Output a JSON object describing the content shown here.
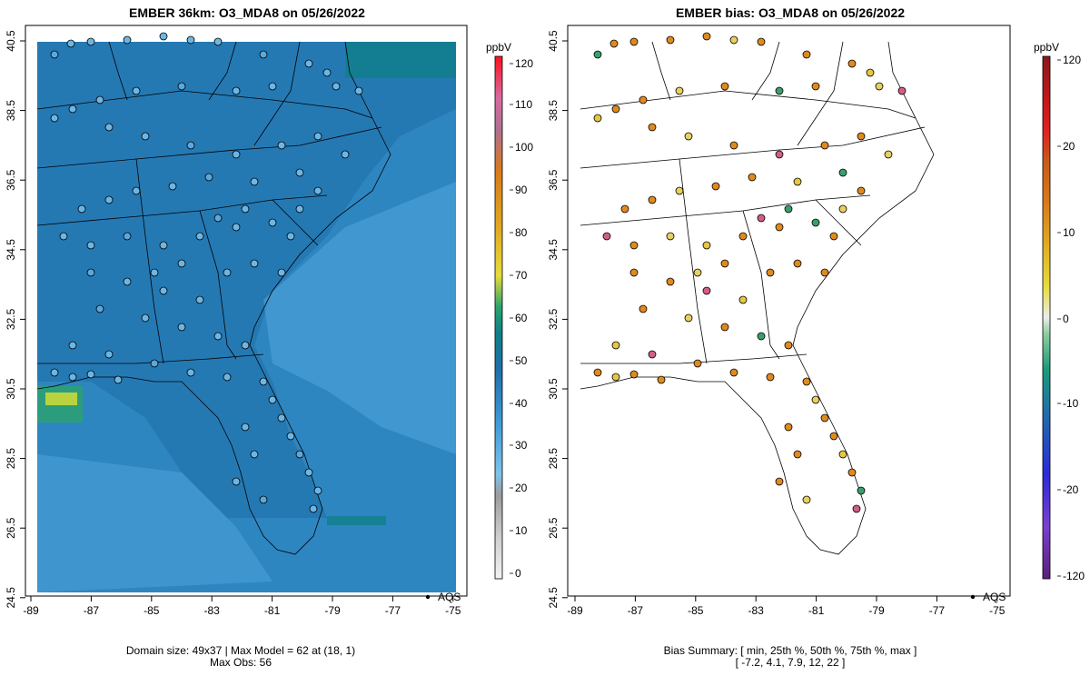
{
  "left_panel": {
    "title": "EMBER 36km: O3_MDA8 on 05/26/2022",
    "legend_point_label": "AQS",
    "footer_line1": "Domain size: 49x37 | Max Model = 62 at (18, 1)",
    "footer_line2": "Max Obs: 56",
    "colorbar": {
      "unit": "ppbV",
      "ticks": [
        "0",
        "10",
        "20",
        "30",
        "40",
        "50",
        "60",
        "70",
        "80",
        "90",
        "100",
        "110",
        "120"
      ]
    }
  },
  "right_panel": {
    "title": "EMBER bias: O3_MDA8 on 05/26/2022",
    "legend_point_label": "AQS",
    "footer_line1": "Bias Summary: [ min, 25th %, 50th %, 75th %, max ]",
    "footer_line2": "[ -7.2,   4.1,   7.9,   12,   22 ]",
    "colorbar": {
      "unit": "ppbV",
      "ticks": [
        "120",
        "20",
        "10",
        "0",
        "-10",
        "-20",
        "-120"
      ]
    }
  },
  "axes": {
    "x_ticks": [
      "-89",
      "-87",
      "-85",
      "-83",
      "-81",
      "-79",
      "-77",
      "-75"
    ],
    "y_ticks": [
      "40.5",
      "38.5",
      "36.5",
      "34.5",
      "32.5",
      "30.5",
      "28.5",
      "26.5",
      "24.5"
    ]
  },
  "colors": {
    "model_field": "#2e86c1",
    "model_high": "#1f6fa8",
    "model_low": "#4fa3d8",
    "bias_positive": "#e08a1e",
    "bias_negative": "#3aa06a"
  }
}
